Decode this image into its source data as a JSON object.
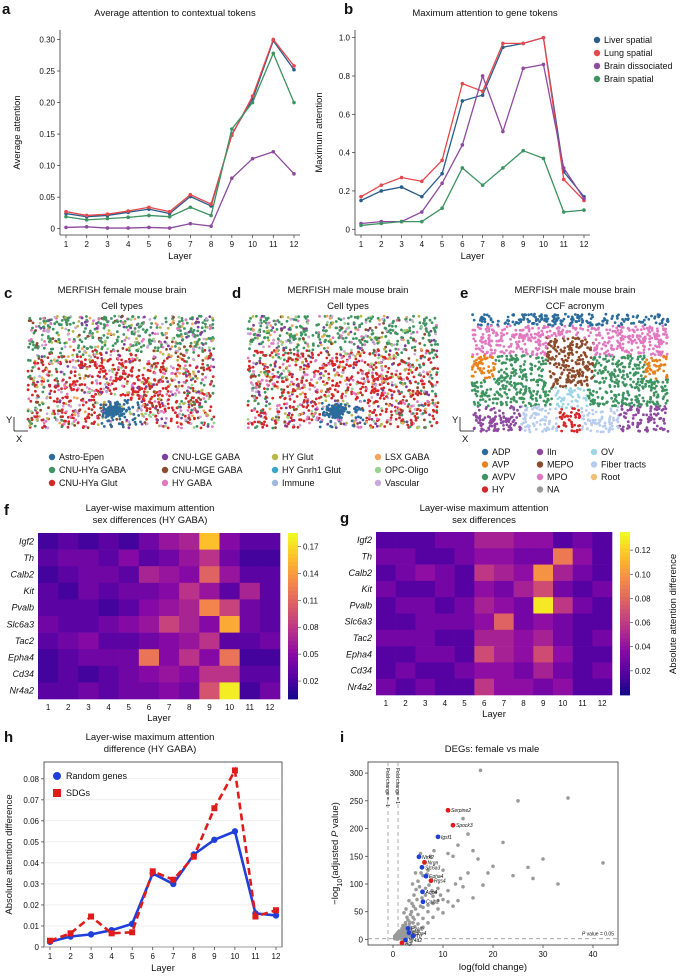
{
  "panels": {
    "a": "a",
    "b": "b",
    "c": "c",
    "d": "d",
    "e": "e",
    "f": "f",
    "g": "g",
    "h": "h",
    "i": "i"
  },
  "chart_data": [
    {
      "id": "a",
      "type": "line",
      "title": "Average attention to contextual tokens",
      "xlabel": "Layer",
      "ylabel": "Average attention",
      "x": [
        1,
        2,
        3,
        4,
        5,
        6,
        7,
        8,
        9,
        10,
        11,
        12
      ],
      "ylim": [
        -0.01,
        0.315
      ],
      "yticks": [
        "0",
        "0.05",
        "0.10",
        "0.15",
        "0.20",
        "0.25",
        "0.30"
      ],
      "series": [
        {
          "name": "Liver spatial",
          "color": "#2b5d8c",
          "values": [
            0.024,
            0.019,
            0.021,
            0.026,
            0.031,
            0.024,
            0.051,
            0.036,
            0.15,
            0.205,
            0.298,
            0.252
          ]
        },
        {
          "name": "Lung spatial",
          "color": "#e8474b",
          "values": [
            0.027,
            0.021,
            0.023,
            0.028,
            0.034,
            0.027,
            0.054,
            0.039,
            0.148,
            0.21,
            0.3,
            0.258
          ]
        },
        {
          "name": "Brain dissociated",
          "color": "#8e4a9f",
          "values": [
            0.002,
            0.003,
            0.001,
            0.001,
            0.002,
            0.001,
            0.008,
            0.004,
            0.08,
            0.111,
            0.122,
            0.087
          ]
        },
        {
          "name": "Brain spatial",
          "color": "#3d9460",
          "values": [
            0.019,
            0.014,
            0.016,
            0.018,
            0.021,
            0.019,
            0.034,
            0.021,
            0.158,
            0.2,
            0.278,
            0.2
          ]
        }
      ]
    },
    {
      "id": "b",
      "type": "line",
      "title": "Maximum attention to gene tokens",
      "xlabel": "Layer",
      "ylabel": "Maximum attention",
      "x": [
        1,
        2,
        3,
        4,
        5,
        6,
        7,
        8,
        9,
        10,
        11,
        12
      ],
      "ylim": [
        -0.03,
        1.04
      ],
      "yticks": [
        "0",
        "0.2",
        "0.4",
        "0.6",
        "0.8",
        "1.0"
      ],
      "legend": [
        "Liver spatial",
        "Lung spatial",
        "Brain dissociated",
        "Brain spatial"
      ],
      "series": [
        {
          "name": "Liver spatial",
          "color": "#2b5d8c",
          "values": [
            0.15,
            0.2,
            0.22,
            0.17,
            0.29,
            0.67,
            0.7,
            0.95,
            0.97,
            1.0,
            0.3,
            0.17
          ]
        },
        {
          "name": "Lung spatial",
          "color": "#e8474b",
          "values": [
            0.17,
            0.23,
            0.27,
            0.25,
            0.36,
            0.76,
            0.72,
            0.97,
            0.97,
            1.0,
            0.26,
            0.15
          ]
        },
        {
          "name": "Brain dissociated",
          "color": "#8e4a9f",
          "values": [
            0.03,
            0.04,
            0.04,
            0.09,
            0.24,
            0.44,
            0.8,
            0.51,
            0.84,
            0.86,
            0.32,
            0.16
          ]
        },
        {
          "name": "Brain spatial",
          "color": "#3d9460",
          "values": [
            0.02,
            0.03,
            0.04,
            0.04,
            0.11,
            0.32,
            0.23,
            0.32,
            0.41,
            0.37,
            0.09,
            0.1
          ]
        }
      ]
    },
    {
      "id": "c",
      "type": "scatter",
      "title": "MERFISH female mouse brain",
      "subtitle": "Cell types",
      "xlabel": "X",
      "ylabel": "Y"
    },
    {
      "id": "d",
      "type": "scatter",
      "title": "MERFISH male mouse brain",
      "subtitle": "Cell types"
    },
    {
      "id": "e",
      "type": "scatter",
      "title": "MERFISH male mouse brain",
      "subtitle": "CCF acronym",
      "xlabel": "X",
      "ylabel": "Y"
    },
    {
      "id": "f",
      "type": "heatmap",
      "title": "Layer-wise maximum attention",
      "subtitle": "sex differences (HY GABA)",
      "xlabel": "Layer",
      "rows": [
        "Igf2",
        "Th",
        "Calb2",
        "Kit",
        "Pvalb",
        "Slc6a3",
        "Tac2",
        "Epha4",
        "Cd34",
        "Nr4a2"
      ],
      "cols": [
        "1",
        "2",
        "3",
        "4",
        "5",
        "6",
        "7",
        "8",
        "9",
        "10",
        "11",
        "12"
      ],
      "values": [
        [
          0.02,
          0.03,
          0.02,
          0.03,
          0.02,
          0.04,
          0.06,
          0.07,
          0.16,
          0.05,
          0.03,
          0.03
        ],
        [
          0.03,
          0.04,
          0.04,
          0.03,
          0.05,
          0.03,
          0.04,
          0.06,
          0.08,
          0.04,
          0.02,
          0.02
        ],
        [
          0.02,
          0.03,
          0.04,
          0.04,
          0.03,
          0.07,
          0.06,
          0.05,
          0.11,
          0.06,
          0.03,
          0.03
        ],
        [
          0.03,
          0.02,
          0.04,
          0.03,
          0.04,
          0.04,
          0.05,
          0.08,
          0.06,
          0.03,
          0.07,
          0.03
        ],
        [
          0.03,
          0.03,
          0.03,
          0.02,
          0.03,
          0.05,
          0.06,
          0.07,
          0.13,
          0.09,
          0.04,
          0.03
        ],
        [
          0.04,
          0.03,
          0.03,
          0.04,
          0.05,
          0.06,
          0.09,
          0.07,
          0.05,
          0.15,
          0.04,
          0.03
        ],
        [
          0.03,
          0.04,
          0.05,
          0.03,
          0.03,
          0.04,
          0.05,
          0.06,
          0.08,
          0.03,
          0.03,
          0.04
        ],
        [
          0.02,
          0.03,
          0.04,
          0.04,
          0.04,
          0.12,
          0.05,
          0.08,
          0.05,
          0.12,
          0.02,
          0.02
        ],
        [
          0.02,
          0.03,
          0.02,
          0.03,
          0.04,
          0.05,
          0.06,
          0.05,
          0.08,
          0.08,
          0.03,
          0.03
        ],
        [
          0.03,
          0.03,
          0.04,
          0.03,
          0.04,
          0.04,
          0.05,
          0.04,
          0.1,
          0.18,
          0.02,
          0.04
        ]
      ],
      "vmin": 0,
      "vmax": 0.185,
      "colorbar_ticks": [
        "0.17",
        "0.14",
        "0.11",
        "0.08",
        "0.05",
        "0.02"
      ],
      "colorbar_vals": [
        0.17,
        0.14,
        0.11,
        0.08,
        0.05,
        0.02
      ]
    },
    {
      "id": "g",
      "type": "heatmap",
      "title": "Layer-wise maximum attention",
      "subtitle": "sex differences",
      "xlabel": "Layer",
      "colorbar_label": "Absolute attention difference",
      "rows": [
        "Igf2",
        "Th",
        "Calb2",
        "Kit",
        "Pvalb",
        "Slc6a3",
        "Tac2",
        "Epha4",
        "Cd34",
        "Nr4a2"
      ],
      "cols": [
        "1",
        "2",
        "3",
        "4",
        "5",
        "6",
        "7",
        "8",
        "9",
        "10",
        "11",
        "12"
      ],
      "values": [
        [
          0.02,
          0.02,
          0.02,
          0.03,
          0.03,
          0.05,
          0.05,
          0.04,
          0.04,
          0.02,
          0.03,
          0.02
        ],
        [
          0.03,
          0.03,
          0.02,
          0.02,
          0.03,
          0.04,
          0.04,
          0.03,
          0.03,
          0.09,
          0.04,
          0.02
        ],
        [
          0.02,
          0.03,
          0.04,
          0.03,
          0.02,
          0.06,
          0.05,
          0.04,
          0.1,
          0.05,
          0.03,
          0.02
        ],
        [
          0.03,
          0.02,
          0.02,
          0.03,
          0.02,
          0.04,
          0.03,
          0.05,
          0.07,
          0.03,
          0.02,
          0.03
        ],
        [
          0.02,
          0.03,
          0.03,
          0.02,
          0.03,
          0.05,
          0.04,
          0.03,
          0.13,
          0.06,
          0.03,
          0.02
        ],
        [
          0.02,
          0.02,
          0.03,
          0.03,
          0.03,
          0.04,
          0.08,
          0.03,
          0.04,
          0.03,
          0.02,
          0.02
        ],
        [
          0.03,
          0.03,
          0.03,
          0.02,
          0.02,
          0.05,
          0.05,
          0.04,
          0.05,
          0.03,
          0.02,
          0.03
        ],
        [
          0.02,
          0.02,
          0.03,
          0.03,
          0.02,
          0.07,
          0.05,
          0.04,
          0.07,
          0.04,
          0.02,
          0.02
        ],
        [
          0.02,
          0.03,
          0.02,
          0.02,
          0.03,
          0.04,
          0.04,
          0.03,
          0.05,
          0.03,
          0.02,
          0.03
        ],
        [
          0.03,
          0.02,
          0.03,
          0.02,
          0.02,
          0.06,
          0.04,
          0.04,
          0.03,
          0.04,
          0.02,
          0.02
        ]
      ],
      "vmin": 0,
      "vmax": 0.135,
      "colorbar_ticks": [
        "0.12",
        "0.10",
        "0.08",
        "0.06",
        "0.04",
        "0.02"
      ],
      "colorbar_vals": [
        0.12,
        0.1,
        0.08,
        0.06,
        0.04,
        0.02
      ]
    },
    {
      "id": "h",
      "type": "line",
      "title": "Layer-wise maximum attention",
      "subtitle": "difference (HY GABA)",
      "xlabel": "Layer",
      "ylabel": "Absolute attention difference",
      "x": [
        1,
        2,
        3,
        4,
        5,
        6,
        7,
        8,
        9,
        10,
        11,
        12
      ],
      "ylim": [
        0,
        0.088
      ],
      "yticks": [
        "0",
        "0.01",
        "0.02",
        "0.03",
        "0.04",
        "0.05",
        "0.06",
        "0.07",
        "0.08"
      ],
      "series": [
        {
          "name": "Random genes",
          "color": "#1f3fd8",
          "values": [
            0.0025,
            0.005,
            0.006,
            0.008,
            0.011,
            0.035,
            0.03,
            0.044,
            0.051,
            0.055,
            0.016,
            0.015
          ]
        },
        {
          "name": "SDGs",
          "color": "#e01b1b",
          "values": [
            0.003,
            0.0065,
            0.0145,
            0.0065,
            0.007,
            0.036,
            0.032,
            0.043,
            0.066,
            0.084,
            0.0145,
            0.0175
          ]
        }
      ]
    },
    {
      "id": "i",
      "type": "scatter",
      "title": "DEGs: female vs male",
      "xlabel": "log(fold change)",
      "ylabel_pre": "−log",
      "ylabel_sub": "10",
      "ylabel_post": "(adjusted ",
      "ylabel_p": "P",
      "ylabel_end": " value)",
      "xlim": [
        -5,
        45
      ],
      "ylim": [
        -10,
        320
      ],
      "xticks": [
        "0",
        "10",
        "20",
        "30",
        "40"
      ],
      "yticks": [
        "0",
        "50",
        "100",
        "150",
        "200",
        "250",
        "300"
      ],
      "thresholds": {
        "fc_neg": "Fold change = −1",
        "fc_pos": "Fold change = 1",
        "pval_pre": "",
        "pval_p": "P",
        "pval_post": " value = 0.05"
      },
      "highlighted": [
        {
          "gene": "Serpine2",
          "x": 11,
          "y": 233,
          "color": "#e01b1b"
        },
        {
          "gene": "Spock3",
          "x": 12,
          "y": 206,
          "color": "#e01b1b"
        },
        {
          "gene": "Igsf1",
          "x": 9,
          "y": 185,
          "color": "#1f3fd8"
        },
        {
          "gene": "Ntrk2",
          "x": 5.2,
          "y": 149,
          "color": "#1f3fd8"
        },
        {
          "gene": "Nrgn",
          "x": 6.3,
          "y": 139,
          "color": "#e01b1b"
        },
        {
          "gene": "Slc6a3",
          "x": 5.8,
          "y": 130,
          "color": "#1f3fd8"
        },
        {
          "gene": "Epha4",
          "x": 6.6,
          "y": 114,
          "color": "#1f3fd8"
        },
        {
          "gene": "Rgs4",
          "x": 7.6,
          "y": 106,
          "color": "#e01b1b"
        },
        {
          "gene": "Aqp4",
          "x": 5.9,
          "y": 86,
          "color": "#1f3fd8"
        },
        {
          "gene": "Calb2",
          "x": 6.0,
          "y": 68,
          "color": "#1f3fd8"
        },
        {
          "gene": "Pvalb",
          "x": 3.0,
          "y": 20,
          "color": "#1f3fd8"
        },
        {
          "gene": "Epha4",
          "x": 3.2,
          "y": 12,
          "color": "#1f3fd8"
        },
        {
          "gene": "Ttr",
          "x": 4.0,
          "y": 6,
          "color": "#1f3fd8"
        },
        {
          "gene": "Nr4a2",
          "x": 2.5,
          "y": -1,
          "color": "#1f3fd8"
        },
        {
          "gene": "Agt",
          "x": 1.8,
          "y": -6,
          "color": "#e01b1b"
        }
      ],
      "gray_points": [
        [
          17.5,
          305
        ],
        [
          25,
          250
        ],
        [
          35,
          255
        ],
        [
          42,
          138
        ],
        [
          27,
          130
        ],
        [
          30,
          145
        ],
        [
          18,
          98
        ],
        [
          24,
          115
        ],
        [
          17,
          145
        ],
        [
          14,
          218
        ],
        [
          15,
          190
        ],
        [
          13,
          170
        ],
        [
          16,
          160
        ],
        [
          22,
          175
        ],
        [
          20,
          132
        ],
        [
          28,
          110
        ],
        [
          12,
          150
        ],
        [
          11,
          155
        ],
        [
          19,
          120
        ],
        [
          33,
          100
        ],
        [
          10,
          125
        ],
        [
          14,
          95
        ],
        [
          11,
          88
        ],
        [
          9,
          92
        ],
        [
          8,
          78
        ],
        [
          16,
          75
        ],
        [
          13,
          70
        ],
        [
          12,
          60
        ],
        [
          9,
          55
        ],
        [
          10,
          48
        ],
        [
          7,
          50
        ],
        [
          8,
          40
        ],
        [
          6,
          38
        ],
        [
          7,
          30
        ],
        [
          5,
          28
        ],
        [
          6,
          22
        ],
        [
          5,
          15
        ],
        [
          4,
          12
        ],
        [
          4,
          30
        ],
        [
          3,
          35
        ],
        [
          2,
          25
        ],
        [
          3,
          8
        ],
        [
          2,
          4
        ],
        [
          1,
          2
        ],
        [
          1.5,
          10
        ],
        [
          2.2,
          18
        ],
        [
          3.5,
          45
        ],
        [
          4.5,
          55
        ],
        [
          5.5,
          60
        ],
        [
          4.8,
          72
        ],
        [
          3.8,
          65
        ],
        [
          6.5,
          92
        ],
        [
          7.2,
          98
        ],
        [
          5.3,
          95
        ],
        [
          4.6,
          90
        ],
        [
          5,
          105
        ],
        [
          6,
          115
        ],
        [
          4.2,
          80
        ],
        [
          3.7,
          50
        ],
        [
          2.8,
          40
        ],
        [
          2.5,
          30
        ],
        [
          2,
          12
        ],
        [
          1.2,
          6
        ],
        [
          0.8,
          3
        ],
        [
          3,
          20
        ],
        [
          4,
          40
        ],
        [
          5,
          45
        ],
        [
          6,
          58
        ],
        [
          7,
          62
        ],
        [
          8,
          65
        ],
        [
          9,
          70
        ],
        [
          10,
          72
        ],
        [
          11,
          68
        ],
        [
          6.8,
          118
        ],
        [
          7,
          125
        ],
        [
          5.6,
          120
        ],
        [
          8.5,
          85
        ],
        [
          9.5,
          80
        ],
        [
          12.5,
          100
        ],
        [
          13.5,
          110
        ],
        [
          15,
          120
        ],
        [
          6.2,
          140
        ],
        [
          5.5,
          155
        ],
        [
          7.5,
          150
        ],
        [
          8.2,
          160
        ],
        [
          4.5,
          120
        ],
        [
          3.9,
          100
        ],
        [
          2.6,
          55
        ],
        [
          1.8,
          20
        ],
        [
          2.2,
          48
        ],
        [
          3.2,
          70
        ],
        [
          4.1,
          60
        ],
        [
          5.8,
          75
        ],
        [
          6.5,
          80
        ],
        [
          7.8,
          88
        ]
      ]
    }
  ],
  "legends": {
    "c": [
      "Astro-Epen",
      "CNU-HYa GABA",
      "CNU-HYa Glut",
      "CNU-LGE GABA",
      "CNU-MGE GABA",
      "HY GABA",
      "HY Glut",
      "HY Gnrh1 Glut",
      "Immune",
      "LSX GABA",
      "OPC-Oligo",
      "Vascular"
    ],
    "c_colors": [
      "#2b6c9c",
      "#3d9460",
      "#d62728",
      "#7b3fa0",
      "#8c4b2a",
      "#e278c0",
      "#b8b84a",
      "#3aa6c7",
      "#9db8dc",
      "#f3a55a",
      "#9bd38e",
      "#c9a9d8"
    ],
    "e": [
      "ADP",
      "AVP",
      "AVPV",
      "HY",
      "Iln",
      "MEPO",
      "MPO",
      "NA",
      "OV",
      "Fiber tracts",
      "Root"
    ],
    "e_colors": [
      "#2b6c9c",
      "#e8811c",
      "#3d9460",
      "#d62728",
      "#8e4a9f",
      "#8c4b2a",
      "#e278c0",
      "#9a9a9a",
      "#9cd6e6",
      "#b8ccee",
      "#f0c07a"
    ]
  }
}
